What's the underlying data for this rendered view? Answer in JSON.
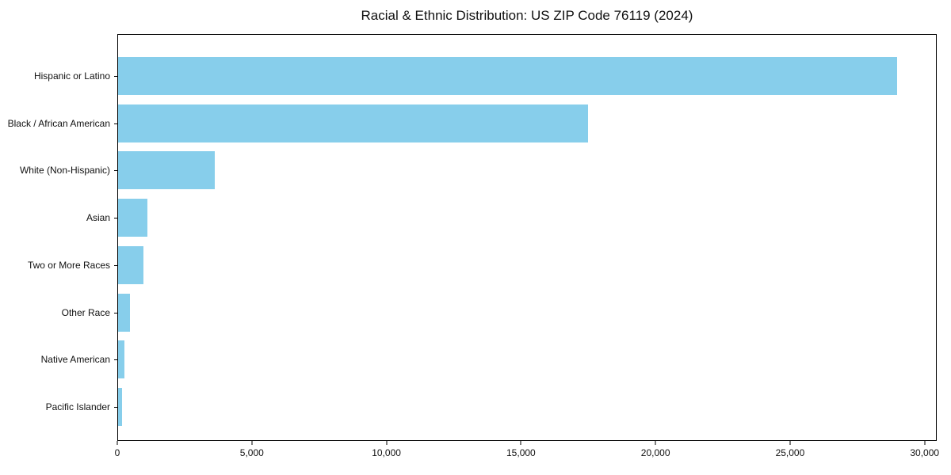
{
  "chart_data": {
    "type": "bar",
    "orientation": "horizontal",
    "title": "Racial & Ethnic Distribution: US ZIP Code 76119 (2024)",
    "categories": [
      "Hispanic or Latino",
      "Black / African American",
      "White (Non-Hispanic)",
      "Asian",
      "Two or More Races",
      "Other Race",
      "Native American",
      "Pacific Islander"
    ],
    "values": [
      29000,
      17500,
      3600,
      1100,
      950,
      450,
      250,
      150
    ],
    "xlabel": "",
    "ylabel": "",
    "xlim": [
      0,
      30450
    ],
    "xticks": [
      0,
      5000,
      10000,
      15000,
      20000,
      25000,
      30000
    ],
    "xtick_labels": [
      "0",
      "5,000",
      "10,000",
      "15,000",
      "20,000",
      "25,000",
      "30,000"
    ],
    "bar_color": "#87CEEB",
    "axis_color": "#000000",
    "background_color": "#ffffff",
    "grid": false,
    "legend": null
  }
}
